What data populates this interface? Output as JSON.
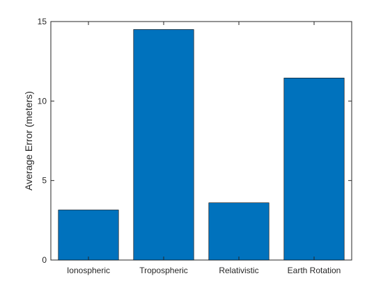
{
  "chart_data": {
    "type": "bar",
    "title": "",
    "xlabel": "",
    "ylabel": "Average Error (meters)",
    "categories": [
      "Ionospheric",
      "Tropospheric",
      "Relativistic",
      "Earth Rotation"
    ],
    "values": [
      3.15,
      14.5,
      3.6,
      11.45
    ],
    "ylim": [
      0,
      15
    ],
    "yticks": [
      0,
      5,
      10,
      15
    ],
    "ytick_labels": [
      "0",
      "5",
      "10",
      "15"
    ],
    "grid": false,
    "legend": "none",
    "bar_color": "#0072bd",
    "bar_edge_color": "#000000",
    "axis_color": "#262626"
  }
}
